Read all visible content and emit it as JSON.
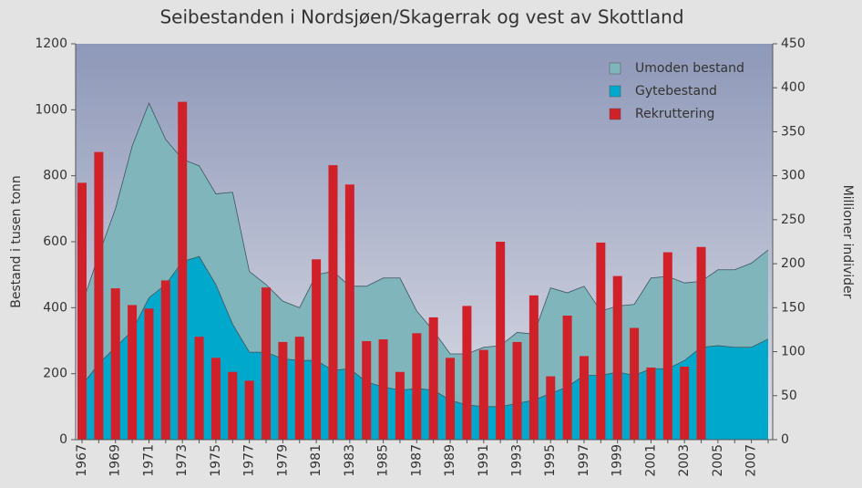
{
  "chart_data": {
    "type": "stacked-area-bar",
    "title": "Seibestanden i Nordsjøen/Skagerrak og vest av Skottland",
    "y_label": "Bestand i tusen tonn",
    "y2_label": "Millioner individer",
    "categories": [
      "1967",
      null,
      "1969",
      null,
      "1971",
      null,
      "1973",
      null,
      "1975",
      null,
      "1977",
      null,
      "1979",
      null,
      "1981",
      null,
      "1983",
      null,
      "1985",
      null,
      "1987",
      null,
      "1989",
      null,
      "1991",
      null,
      "1993",
      null,
      "1995",
      null,
      "1997",
      null,
      "1999",
      null,
      "2001",
      null,
      "2003",
      null,
      "2005",
      null,
      "2007",
      null
    ],
    "series": [
      {
        "name": "Gytebestand",
        "color": "#00a8cc",
        "kind": "area",
        "values": [
          165,
          230,
          280,
          330,
          430,
          470,
          540,
          555,
          470,
          350,
          265,
          265,
          245,
          240,
          240,
          210,
          215,
          175,
          160,
          150,
          155,
          150,
          120,
          105,
          100,
          100,
          110,
          120,
          140,
          160,
          195,
          195,
          205,
          195,
          215,
          215,
          240,
          280,
          285,
          280,
          280,
          305
        ]
      },
      {
        "name": "Umoden bestand",
        "color": "#7fb5bb",
        "kind": "area",
        "values": [
          245,
          330,
          420,
          560,
          590,
          440,
          310,
          275,
          275,
          400,
          245,
          205,
          175,
          160,
          260,
          300,
          250,
          290,
          330,
          340,
          235,
          180,
          140,
          155,
          180,
          185,
          215,
          200,
          320,
          285,
          270,
          195,
          200,
          215,
          275,
          280,
          235,
          200,
          230,
          235,
          255,
          270
        ]
      },
      {
        "name": "Rekruttering",
        "color": "#d0212b",
        "kind": "bar",
        "axis": "y2",
        "values": [
          292,
          327,
          172,
          153,
          149,
          181,
          384,
          117,
          93,
          77,
          67,
          173,
          111,
          117,
          205,
          312,
          290,
          112,
          114,
          77,
          121,
          139,
          93,
          152,
          102,
          225,
          111,
          164,
          72,
          141,
          95,
          224,
          186,
          127,
          82,
          213,
          83,
          219,
          null,
          null,
          null,
          null
        ]
      }
    ],
    "legend_order": [
      1,
      0,
      2
    ],
    "ylim": [
      0,
      1200
    ],
    "yticks": [
      0,
      200,
      400,
      600,
      800,
      1000,
      1200
    ],
    "y2lim": [
      0,
      450
    ],
    "y2ticks": [
      0,
      50,
      100,
      150,
      200,
      250,
      300,
      350,
      400,
      450
    ]
  }
}
